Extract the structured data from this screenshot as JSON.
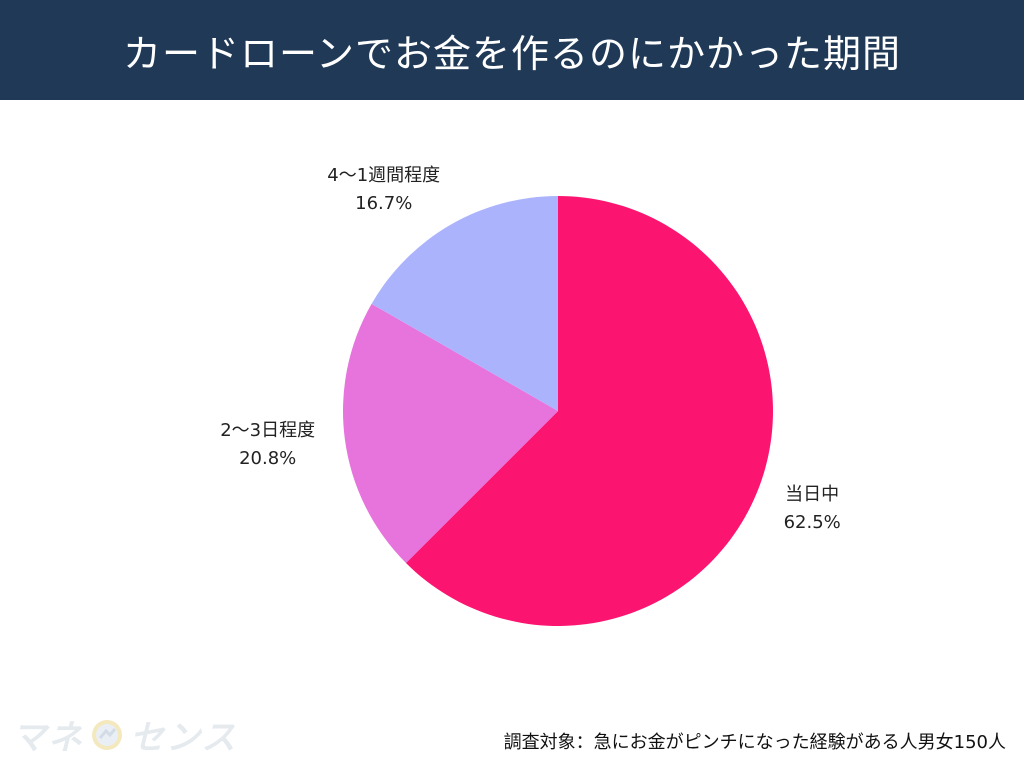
{
  "header": {
    "title": "カードローンでお金を作るのにかかった期間"
  },
  "chart_data": {
    "type": "pie",
    "title": "カードローンでお金を作るのにかかった期間",
    "categories": [
      "当日中",
      "2〜3日程度",
      "4〜1週間程度"
    ],
    "values": [
      62.5,
      20.8,
      16.7
    ],
    "value_labels": [
      "62.5%",
      "20.8%",
      "16.7%"
    ],
    "colors": [
      "#fc1570",
      "#e773dd",
      "#acb3fd"
    ],
    "start": "12 o'clock",
    "direction": "clockwise"
  },
  "logo": {
    "text_a": "マネ",
    "text_b": "センス"
  },
  "footer": {
    "note": "調査対象：急にお金がピンチになった経験がある人男女150人"
  }
}
